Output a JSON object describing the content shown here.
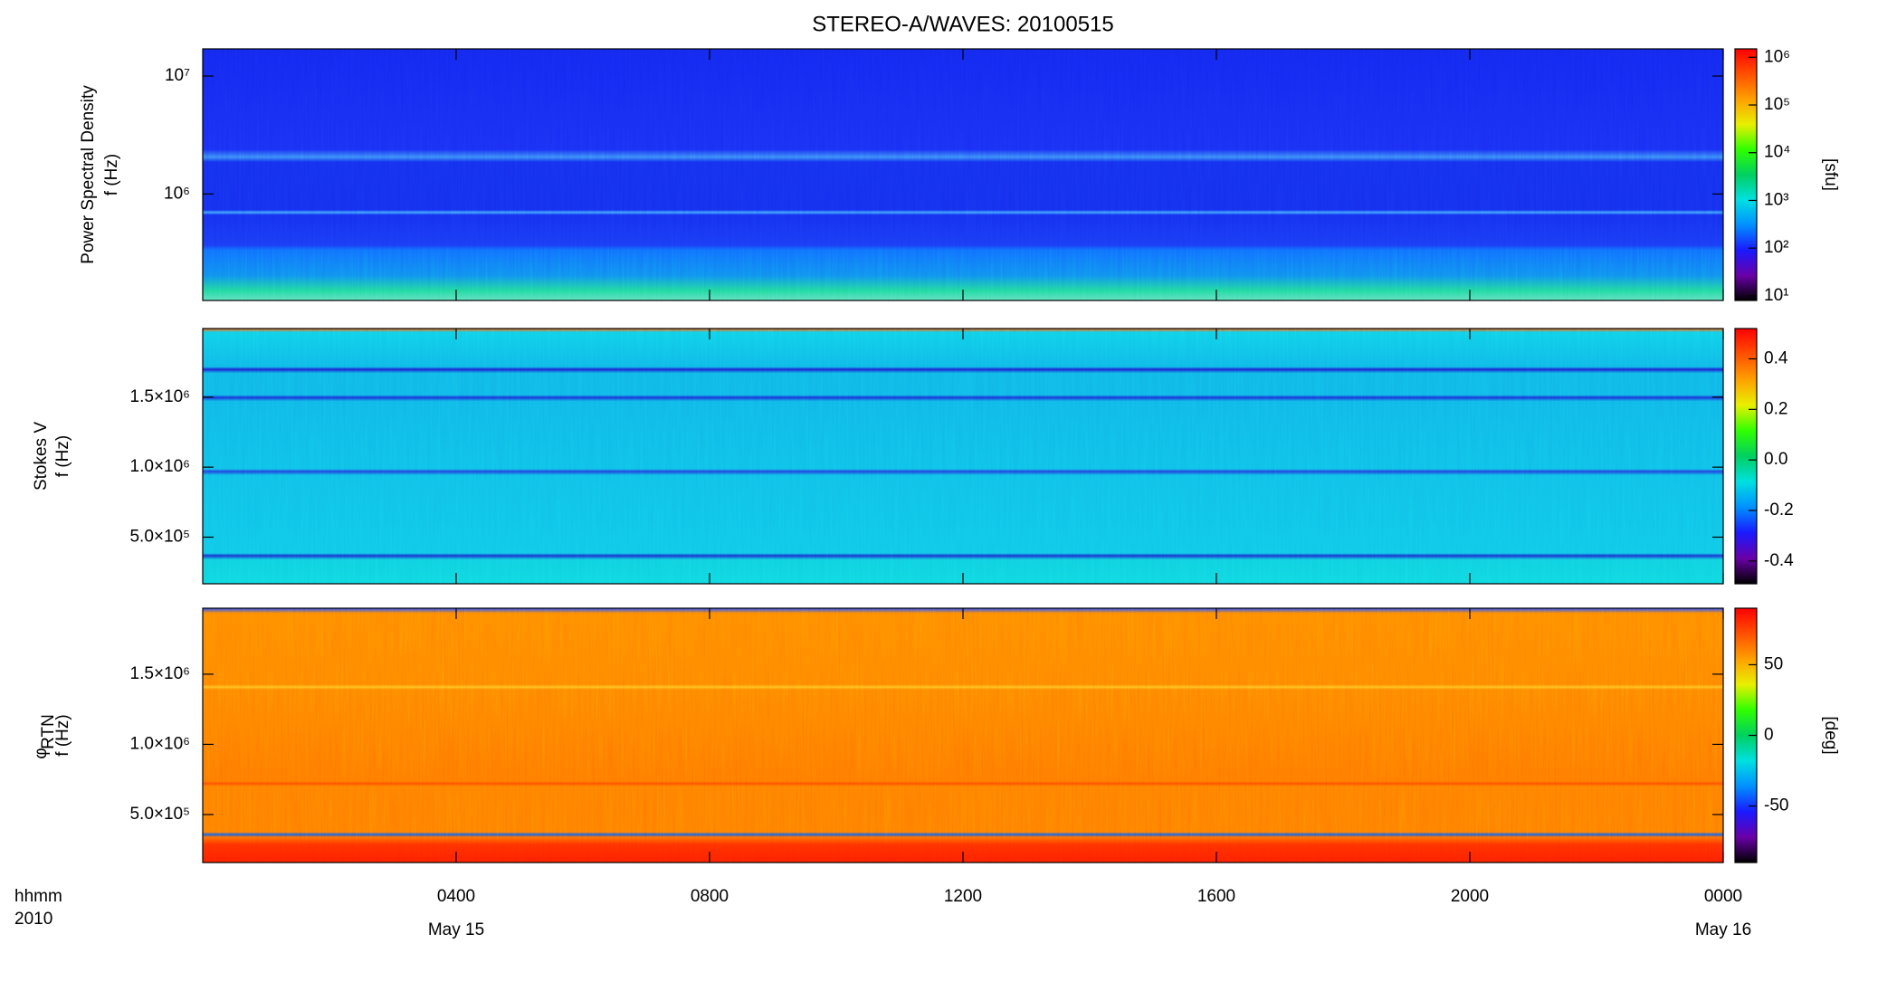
{
  "title": "STEREO-A/WAVES: 20100515",
  "xlim": [
    0,
    24
  ],
  "xticks": [
    {
      "value": 4,
      "label": "0400"
    },
    {
      "value": 8,
      "label": "0800"
    },
    {
      "value": 12,
      "label": "1200"
    },
    {
      "value": 16,
      "label": "1600"
    },
    {
      "value": 20,
      "label": "2000"
    },
    {
      "value": 24,
      "label": "0000"
    }
  ],
  "date_labels": [
    {
      "value": 4,
      "label": "May 15"
    },
    {
      "value": 24,
      "label": "May 16"
    }
  ],
  "corner_labels": [
    "hhmm",
    "2010"
  ],
  "colormap": [
    "#000000",
    "#6a00a8",
    "#1a1aff",
    "#0090ff",
    "#00e0e0",
    "#00d060",
    "#30ff00",
    "#e8f000",
    "#ffa000",
    "#ff5000",
    "#ff0000"
  ],
  "chart_data": [
    {
      "type": "spectrogram",
      "ylabel": [
        "Power Spectral Density",
        "f (Hz)"
      ],
      "log_scale": true,
      "ylim": [
        125000,
        17000000
      ],
      "yticks": [
        {
          "value": 1000000,
          "label": "10⁶"
        },
        {
          "value": 10000000,
          "label": "10⁷"
        }
      ],
      "clog": true,
      "clim": [
        8,
        1500000
      ],
      "cticks": [
        {
          "value": 10,
          "label": "10¹"
        },
        {
          "value": 100,
          "label": "10²"
        },
        {
          "value": 1000,
          "label": "10³"
        },
        {
          "value": 10000,
          "label": "10⁴"
        },
        {
          "value": 100000,
          "label": "10⁵"
        },
        {
          "value": 1000000,
          "label": "10⁶"
        }
      ],
      "clabel": "[sfu]"
    },
    {
      "type": "spectrogram",
      "ylabel": [
        "Stokes V",
        "f (Hz)"
      ],
      "log_scale": false,
      "ylim": [
        167000,
        1990000
      ],
      "yticks": [
        {
          "value": 500000,
          "label": "5.0×10⁵"
        },
        {
          "value": 1000000,
          "label": "1.0×10⁶"
        },
        {
          "value": 1500000,
          "label": "1.5×10⁶"
        }
      ],
      "clog": false,
      "clim": [
        -0.49,
        0.52
      ],
      "cticks": [
        -0.4,
        -0.2,
        {
          "value": 0,
          "label": "0.0"
        },
        0.2,
        0.4
      ]
    },
    {
      "type": "spectrogram",
      "ylabel": [
        "φ",
        "f (Hz)"
      ],
      "ylabel_sub": "RTN",
      "log_scale": false,
      "ylim": [
        158000,
        1970000
      ],
      "yticks": [
        {
          "value": 500000,
          "label": "5.0×10⁵"
        },
        {
          "value": 1000000,
          "label": "1.0×10⁶"
        },
        {
          "value": 1500000,
          "label": "1.5×10⁶"
        }
      ],
      "clog": false,
      "clim": [
        -90,
        90
      ],
      "cticks": [
        -50,
        0,
        50
      ],
      "clabel": "[deg]"
    }
  ]
}
